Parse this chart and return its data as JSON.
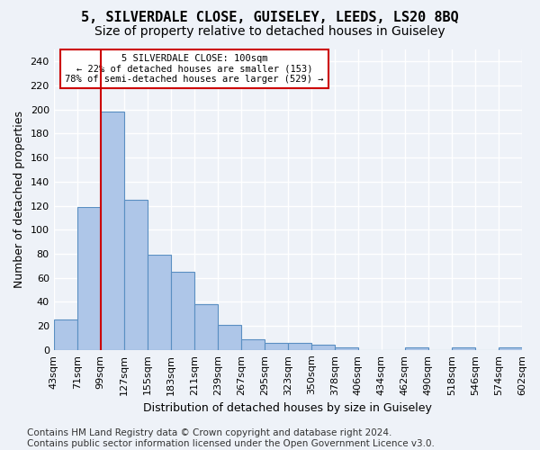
{
  "title": "5, SILVERDALE CLOSE, GUISELEY, LEEDS, LS20 8BQ",
  "subtitle": "Size of property relative to detached houses in Guiseley",
  "xlabel": "Distribution of detached houses by size in Guiseley",
  "ylabel": "Number of detached properties",
  "bar_values": [
    25,
    119,
    198,
    125,
    79,
    65,
    38,
    21,
    9,
    6,
    6,
    4,
    2,
    0,
    0,
    2,
    0,
    2,
    0,
    2
  ],
  "categories": [
    "43sqm",
    "71sqm",
    "99sqm",
    "127sqm",
    "155sqm",
    "183sqm",
    "211sqm",
    "239sqm",
    "267sqm",
    "295sqm",
    "323sqm",
    "350sqm",
    "378sqm",
    "406sqm",
    "434sqm",
    "462sqm",
    "490sqm",
    "518sqm",
    "546sqm",
    "574sqm",
    "602sqm"
  ],
  "bar_color": "#aec6e8",
  "bar_edge_color": "#5a8fc2",
  "vline_x": 2,
  "vline_color": "#cc0000",
  "annotation_line1": "5 SILVERDALE CLOSE: 100sqm",
  "annotation_line2": "← 22% of detached houses are smaller (153)",
  "annotation_line3": "78% of semi-detached houses are larger (529) →",
  "annotation_box_color": "#cc0000",
  "annotation_fill": "#ffffff",
  "ylim": [
    0,
    250
  ],
  "yticks": [
    0,
    20,
    40,
    60,
    80,
    100,
    120,
    140,
    160,
    180,
    200,
    220,
    240
  ],
  "footer_text": "Contains HM Land Registry data © Crown copyright and database right 2024.\nContains public sector information licensed under the Open Government Licence v3.0.",
  "background_color": "#eef2f8",
  "grid_color": "#ffffff",
  "title_fontsize": 11,
  "subtitle_fontsize": 10,
  "axis_label_fontsize": 9,
  "tick_fontsize": 8,
  "footer_fontsize": 7.5
}
